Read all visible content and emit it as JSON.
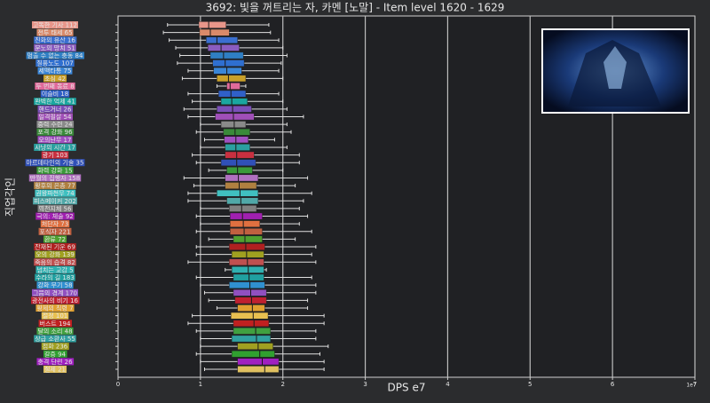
{
  "chart_data": {
    "type": "box",
    "title": "3692: 빛을 꺼트리는 자, 카멘 [노말] - Item level 1620 - 1629",
    "xlabel": "DPS e7",
    "ylabel": "직업각인",
    "x_offset_label": "1e7",
    "xlim": [
      0,
      7
    ],
    "xticks": [
      0,
      1,
      2,
      3,
      4,
      5,
      6,
      7
    ],
    "grid": true,
    "categories": [
      "고독한 기사 112",
      "전투 태세 65",
      "진화의 유산 16",
      "분노의 망치 51",
      "멈출 수 없는 충동 84",
      "질풍노도 107",
      "세맥타통 75",
      "초심 42",
      "두 번째 동료 8",
      "이슬비 18",
      "완벽한 억제 41",
      "핸드거너 26",
      "일격필살 54",
      "중력 수련 24",
      "포격 강화 96",
      "오의난무 17",
      "사냥의 시간 17",
      "광기 103",
      "아르데타인의 기술 35",
      "화력 강화 15",
      "만월의 집행자 158",
      "황후의 은총 77",
      "권왕파천무 74",
      "피스메이커 202",
      "역천지체 56",
      "극의: 체술 92",
      "처단자 73",
      "포식자 221",
      "환류 72",
      "잔재된 기운 69",
      "오의 강화 139",
      "죽음의 습격 82",
      "넘치는 교감 5",
      "수라의 길 183",
      "강화 무기 58",
      "그믐의 경계 170",
      "광전사의 비기 16",
      "황제의 칙령 7",
      "절정 101",
      "버스트 194",
      "달의 소리 48",
      "상급 소환사 55",
      "점화 236",
      "갈증 94",
      "충격 단련 26",
      "절제 21"
    ],
    "colors": [
      "#e8968a",
      "#d98a6a",
      "#3a6fd0",
      "#8a5cc0",
      "#2f7fc4",
      "#2f6fd0",
      "#3a86d8",
      "#c9a02a",
      "#e06a9a",
      "#3060c8",
      "#1aa6a0",
      "#7a4fb8",
      "#a04fb8",
      "#8a8a8a",
      "#3a8a3a",
      "#a050c0",
      "#2aa0a0",
      "#c83040",
      "#3050b8",
      "#3a9a3a",
      "#b070c0",
      "#b08040",
      "#40c0c0",
      "#50a8a8",
      "#808080",
      "#a020b0",
      "#e07040",
      "#c06040",
      "#50a030",
      "#b02020",
      "#a0a020",
      "#c05050",
      "#30b0b0",
      "#20a0a0",
      "#3090d0",
      "#9050c0",
      "#c02030",
      "#e0a030",
      "#e8c050",
      "#c02020",
      "#40a040",
      "#30a0a0",
      "#a0a020",
      "#30a030",
      "#a020c0",
      "#e0c060"
    ],
    "whislo": [
      0.6,
      0.55,
      0.62,
      0.7,
      0.75,
      0.72,
      0.85,
      0.78,
      1.2,
      0.85,
      0.9,
      0.8,
      0.85,
      1.0,
      0.95,
      1.05,
      1.0,
      0.9,
      0.95,
      1.1,
      0.8,
      0.92,
      0.85,
      0.85,
      1.0,
      0.95,
      1.0,
      0.95,
      1.1,
      0.95,
      0.95,
      0.85,
      1.3,
      0.95,
      1.0,
      1.05,
      1.1,
      1.2,
      0.9,
      0.85,
      0.95,
      1.0,
      1.0,
      0.95,
      1.0,
      1.05
    ],
    "q1": [
      0.98,
      0.99,
      1.07,
      1.09,
      1.12,
      1.15,
      1.16,
      1.2,
      1.32,
      1.22,
      1.25,
      1.2,
      1.18,
      1.25,
      1.28,
      1.29,
      1.3,
      1.3,
      1.25,
      1.32,
      1.3,
      1.3,
      1.2,
      1.32,
      1.35,
      1.36,
      1.36,
      1.36,
      1.4,
      1.35,
      1.38,
      1.35,
      1.38,
      1.4,
      1.35,
      1.4,
      1.42,
      1.45,
      1.37,
      1.4,
      1.4,
      1.38,
      1.45,
      1.38,
      1.45,
      1.45
    ],
    "med": [
      1.1,
      1.12,
      1.2,
      1.25,
      1.28,
      1.3,
      1.32,
      1.34,
      1.36,
      1.37,
      1.38,
      1.39,
      1.4,
      1.41,
      1.42,
      1.43,
      1.43,
      1.44,
      1.44,
      1.45,
      1.46,
      1.47,
      1.48,
      1.49,
      1.5,
      1.51,
      1.52,
      1.53,
      1.54,
      1.55,
      1.56,
      1.57,
      1.58,
      1.59,
      1.6,
      1.61,
      1.62,
      1.63,
      1.64,
      1.65,
      1.67,
      1.68,
      1.7,
      1.72,
      1.75,
      1.78
    ],
    "q3": [
      1.31,
      1.35,
      1.45,
      1.47,
      1.52,
      1.53,
      1.5,
      1.55,
      1.48,
      1.55,
      1.57,
      1.62,
      1.65,
      1.55,
      1.6,
      1.58,
      1.6,
      1.65,
      1.67,
      1.63,
      1.7,
      1.68,
      1.7,
      1.7,
      1.68,
      1.75,
      1.72,
      1.75,
      1.75,
      1.78,
      1.77,
      1.77,
      1.77,
      1.77,
      1.78,
      1.8,
      1.8,
      1.78,
      1.82,
      1.83,
      1.85,
      1.85,
      1.88,
      1.9,
      1.95,
      1.95
    ],
    "whishi": [
      1.83,
      1.85,
      1.95,
      2.0,
      2.05,
      1.98,
      1.95,
      2.0,
      1.55,
      1.95,
      2.0,
      2.05,
      2.25,
      2.05,
      2.1,
      1.9,
      2.05,
      2.2,
      2.2,
      2.0,
      2.3,
      2.15,
      2.35,
      2.25,
      2.2,
      2.3,
      2.2,
      2.35,
      2.15,
      2.4,
      2.35,
      2.4,
      1.8,
      2.35,
      2.4,
      2.4,
      2.3,
      2.3,
      2.5,
      2.5,
      2.4,
      2.4,
      2.55,
      2.45,
      2.5,
      2.5
    ]
  }
}
